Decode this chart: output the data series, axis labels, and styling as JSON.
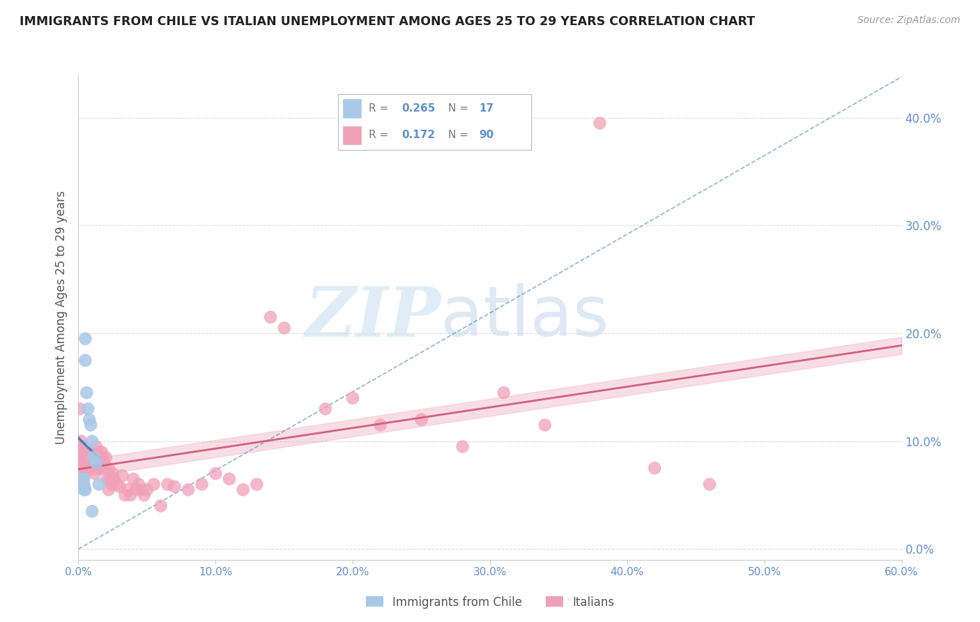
{
  "title": "IMMIGRANTS FROM CHILE VS ITALIAN UNEMPLOYMENT AMONG AGES 25 TO 29 YEARS CORRELATION CHART",
  "source": "Source: ZipAtlas.com",
  "ylabel": "Unemployment Among Ages 25 to 29 years",
  "legend_label1": "Immigrants from Chile",
  "legend_label2": "Italians",
  "R1": 0.265,
  "N1": 17,
  "R2": 0.172,
  "N2": 90,
  "watermark_zip": "ZIP",
  "watermark_atlas": "atlas",
  "blue_color": "#a8c8e8",
  "pink_color": "#f0a0b8",
  "blue_line_color": "#4080c0",
  "pink_line_color": "#d06080",
  "axis_label_color": "#6090d0",
  "title_color": "#222222",
  "source_color": "#999999",
  "ylabel_color": "#555555",
  "grid_color": "#dddddd",
  "xlim": [
    0.0,
    0.6
  ],
  "ylim": [
    -0.01,
    0.44
  ],
  "xticks": [
    0.0,
    0.1,
    0.2,
    0.3,
    0.4,
    0.5,
    0.6
  ],
  "yticks": [
    0.0,
    0.1,
    0.2,
    0.3,
    0.4
  ],
  "chile_x": [
    0.003,
    0.004,
    0.004,
    0.005,
    0.005,
    0.006,
    0.007,
    0.008,
    0.009,
    0.01,
    0.011,
    0.013,
    0.015,
    0.003,
    0.004,
    0.005,
    0.01
  ],
  "chile_y": [
    0.06,
    0.055,
    0.06,
    0.195,
    0.175,
    0.145,
    0.13,
    0.12,
    0.115,
    0.1,
    0.085,
    0.08,
    0.06,
    0.065,
    0.065,
    0.055,
    0.035
  ],
  "italian_x": [
    0.001,
    0.001,
    0.002,
    0.002,
    0.002,
    0.002,
    0.003,
    0.003,
    0.003,
    0.003,
    0.004,
    0.004,
    0.004,
    0.004,
    0.005,
    0.005,
    0.005,
    0.005,
    0.006,
    0.006,
    0.006,
    0.007,
    0.007,
    0.007,
    0.008,
    0.008,
    0.008,
    0.009,
    0.009,
    0.01,
    0.01,
    0.01,
    0.011,
    0.011,
    0.012,
    0.012,
    0.013,
    0.013,
    0.014,
    0.014,
    0.015,
    0.015,
    0.016,
    0.017,
    0.017,
    0.018,
    0.018,
    0.019,
    0.02,
    0.021,
    0.022,
    0.022,
    0.023,
    0.024,
    0.025,
    0.026,
    0.028,
    0.03,
    0.032,
    0.034,
    0.036,
    0.038,
    0.04,
    0.042,
    0.044,
    0.046,
    0.048,
    0.05,
    0.055,
    0.06,
    0.065,
    0.07,
    0.08,
    0.09,
    0.1,
    0.11,
    0.12,
    0.13,
    0.14,
    0.15,
    0.18,
    0.2,
    0.22,
    0.25,
    0.28,
    0.31,
    0.34,
    0.38,
    0.42,
    0.46
  ],
  "italian_y": [
    0.13,
    0.09,
    0.085,
    0.1,
    0.08,
    0.095,
    0.09,
    0.08,
    0.075,
    0.085,
    0.095,
    0.08,
    0.075,
    0.085,
    0.09,
    0.075,
    0.08,
    0.085,
    0.085,
    0.078,
    0.09,
    0.085,
    0.078,
    0.09,
    0.085,
    0.075,
    0.088,
    0.08,
    0.085,
    0.088,
    0.075,
    0.082,
    0.088,
    0.078,
    0.085,
    0.07,
    0.082,
    0.095,
    0.085,
    0.078,
    0.09,
    0.075,
    0.082,
    0.09,
    0.075,
    0.085,
    0.082,
    0.078,
    0.085,
    0.065,
    0.055,
    0.075,
    0.065,
    0.06,
    0.07,
    0.065,
    0.06,
    0.058,
    0.068,
    0.05,
    0.055,
    0.05,
    0.065,
    0.055,
    0.06,
    0.055,
    0.05,
    0.055,
    0.06,
    0.04,
    0.06,
    0.058,
    0.055,
    0.06,
    0.07,
    0.065,
    0.055,
    0.06,
    0.215,
    0.205,
    0.13,
    0.14,
    0.115,
    0.12,
    0.095,
    0.145,
    0.115,
    0.395,
    0.075,
    0.06
  ]
}
